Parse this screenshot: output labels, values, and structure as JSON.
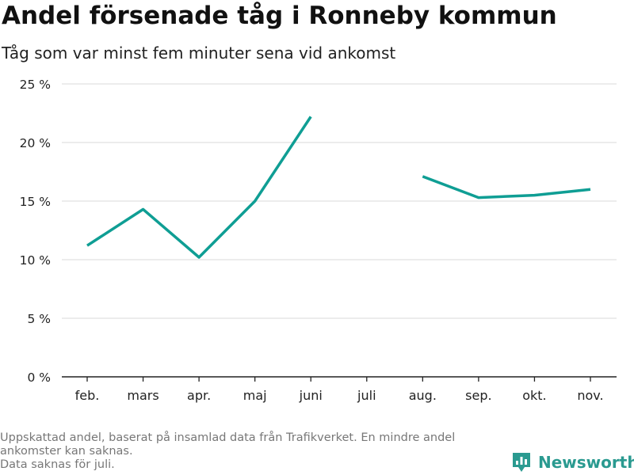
{
  "title": "Andel försenade tåg i Ronneby kommun",
  "subtitle": "Tåg som var minst fem minuter sena vid ankomst",
  "footnote": [
    "Uppskattad andel, baserat på insamlad data från Trafikverket. En mindre andel",
    "ankomster kan saknas.",
    "Data saknas för juli."
  ],
  "brand": {
    "name": "Newsworthy",
    "icon": "newsworthy-logo-icon",
    "color": "#2a9a90"
  },
  "chart_data": {
    "type": "line",
    "title": "Andel försenade tåg i Ronneby kommun",
    "subtitle": "Tåg som var minst fem minuter sena vid ankomst",
    "categories": [
      "feb.",
      "mars",
      "apr.",
      "maj",
      "juni",
      "juli",
      "aug.",
      "sep.",
      "okt.",
      "nov."
    ],
    "series": [
      {
        "values": [
          11.2,
          14.3,
          10.2,
          15.0,
          22.2,
          null,
          17.1,
          15.3,
          15.5,
          16.0
        ],
        "color": "#0f9e94"
      }
    ],
    "ylim": [
      0,
      25
    ],
    "yticks": [
      0,
      5,
      10,
      15,
      20,
      25
    ],
    "ytick_labels": [
      "0 %",
      "5 %",
      "10 %",
      "15 %",
      "20 %",
      "25 %"
    ],
    "grid": true,
    "grid_color": "#e0e0e0",
    "axis_color": "#222222"
  }
}
